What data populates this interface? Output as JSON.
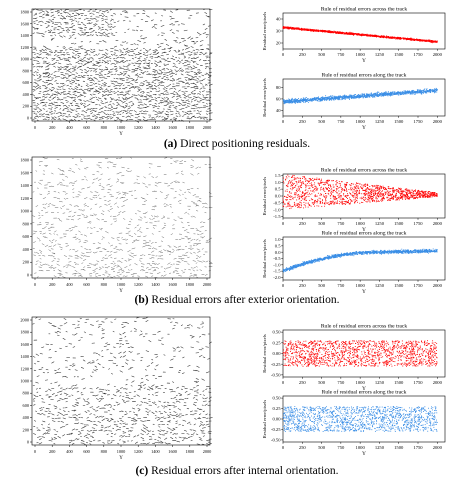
{
  "figure": {
    "panels": [
      {
        "id": "a",
        "caption_label": "(a)",
        "caption_text": " Direct positioning residuals.",
        "vector": {
          "y_label": "Y",
          "x_ticks": [
            "0",
            "200",
            "400",
            "600",
            "800",
            "1000",
            "1200",
            "1400",
            "1600",
            "1800",
            "2000"
          ],
          "y_ticks": [
            "0",
            "200",
            "400",
            "600",
            "800",
            "1000",
            "1200",
            "1400",
            "1600",
            "1800"
          ]
        },
        "charts": [
          {
            "title": "Rule of residual errors across the track",
            "xlabel": "Y",
            "ylabel": "Residual error/pixels",
            "color": "#ff0000",
            "x_ticks": [
              "0",
              "250",
              "500",
              "750",
              "1000",
              "1250",
              "1500",
              "1750",
              "2000"
            ],
            "y_ticks": [
              "20",
              "30",
              "40"
            ]
          },
          {
            "title": "Rule of residual errors along the track",
            "xlabel": "Y",
            "ylabel": "Residual error/pixels",
            "color": "#3a8ee6",
            "x_ticks": [
              "0",
              "250",
              "500",
              "750",
              "1000",
              "1250",
              "1500",
              "1750",
              "2000"
            ],
            "y_ticks": [
              "40",
              "60",
              "80"
            ]
          }
        ]
      },
      {
        "id": "b",
        "caption_label": "(b)",
        "caption_text": " Residual errors after exterior orientation.",
        "vector": {
          "y_label": "Y",
          "x_ticks": [
            "0",
            "200",
            "400",
            "600",
            "800",
            "1000",
            "1200",
            "1400",
            "1600",
            "1800",
            "2000"
          ],
          "y_ticks": [
            "0",
            "200",
            "400",
            "600",
            "800",
            "1000",
            "1200",
            "1400",
            "1600",
            "1800"
          ]
        },
        "charts": [
          {
            "title": "Rule of residual errors across the track",
            "xlabel": "Y",
            "ylabel": "Residual error/pixels",
            "color": "#ff0000",
            "x_ticks": [
              "0",
              "250",
              "500",
              "750",
              "1000",
              "1250",
              "1500",
              "1750",
              "2000"
            ],
            "y_ticks": [
              "-1.5",
              "-1.0",
              "-0.5",
              "0.0",
              "0.5",
              "1.0",
              "1.5"
            ]
          },
          {
            "title": "Rule of residual errors along the track",
            "xlabel": "Y",
            "ylabel": "Residual error/pixels",
            "color": "#3a8ee6",
            "x_ticks": [
              "0",
              "250",
              "500",
              "750",
              "1000",
              "1250",
              "1500",
              "1750",
              "2000"
            ],
            "y_ticks": [
              "-2.0",
              "-1.5",
              "-1.0",
              "-0.5",
              "0.0",
              "0.5",
              "1.0"
            ]
          }
        ]
      },
      {
        "id": "c",
        "caption_label": "(c)",
        "caption_text": " Residual errors after internal orientation.",
        "vector": {
          "y_label": "Y",
          "x_ticks": [
            "0",
            "200",
            "400",
            "600",
            "800",
            "1000",
            "1200",
            "1400",
            "1600",
            "1800",
            "2000"
          ],
          "y_ticks": [
            "0",
            "200",
            "400",
            "600",
            "800",
            "1000",
            "1200",
            "1400",
            "1600",
            "1800",
            "2000"
          ]
        },
        "charts": [
          {
            "title": "Rule of residual errors across the track",
            "xlabel": "Y",
            "ylabel": "Residual error/pixels",
            "color": "#ff0000",
            "x_ticks": [
              "0",
              "250",
              "500",
              "750",
              "1000",
              "1250",
              "1500",
              "1750",
              "2000"
            ],
            "y_ticks": [
              "-0.50",
              "-0.25",
              "0.00",
              "0.25",
              "0.50"
            ]
          },
          {
            "title": "Rule of residual errors along the track",
            "xlabel": "Y",
            "ylabel": "Residual error/pixels",
            "color": "#3a8ee6",
            "x_ticks": [
              "0",
              "250",
              "500",
              "750",
              "1000",
              "1250",
              "1500",
              "1750",
              "2000"
            ],
            "y_ticks": [
              "-0.50",
              "-0.25",
              "0.00",
              "0.25",
              "0.50"
            ]
          }
        ]
      }
    ]
  },
  "chart_data": [
    {
      "type": "scatter",
      "panel": "a",
      "title": "Rule of residual errors across the track",
      "xlabel": "Y",
      "ylabel": "Residual error/pixels",
      "xlim": [
        0,
        2100
      ],
      "ylim": [
        15,
        45
      ],
      "trend": "linear",
      "x": [
        0,
        2000
      ],
      "y": [
        33,
        21
      ],
      "spread": 1.5,
      "color": "#ff0000"
    },
    {
      "type": "scatter",
      "panel": "a",
      "title": "Rule of residual errors along the track",
      "xlabel": "Y",
      "ylabel": "Residual error/pixels",
      "xlim": [
        0,
        2100
      ],
      "ylim": [
        30,
        95
      ],
      "trend": "linear",
      "x": [
        0,
        2000
      ],
      "y": [
        55,
        75
      ],
      "spread": 7,
      "color": "#3a8ee6"
    },
    {
      "type": "scatter",
      "panel": "b",
      "title": "Rule of residual errors across the track",
      "xlabel": "Y",
      "ylabel": "Residual error/pixels",
      "xlim": [
        0,
        2100
      ],
      "ylim": [
        -1.6,
        1.6
      ],
      "trend": "funnel",
      "x": [
        0,
        2000
      ],
      "y": [
        0.3,
        0.1
      ],
      "spread_start": 1.3,
      "spread_end": 0.15,
      "color": "#ff0000"
    },
    {
      "type": "scatter",
      "panel": "b",
      "title": "Rule of residual errors along the track",
      "xlabel": "Y",
      "ylabel": "Residual error/pixels",
      "xlim": [
        0,
        2100
      ],
      "ylim": [
        -2.2,
        1.2
      ],
      "trend": "curve",
      "x": [
        0,
        1250,
        2000
      ],
      "y": [
        -1.5,
        0.0,
        0.1
      ],
      "spread": 0.25,
      "color": "#3a8ee6"
    },
    {
      "type": "scatter",
      "panel": "c",
      "title": "Rule of residual errors across the track",
      "xlabel": "Y",
      "ylabel": "Residual error/pixels",
      "xlim": [
        0,
        2100
      ],
      "ylim": [
        -0.55,
        0.55
      ],
      "trend": "flat",
      "x": [
        0,
        2000
      ],
      "y": [
        0.0,
        0.0
      ],
      "spread": 0.3,
      "color": "#ff0000"
    },
    {
      "type": "scatter",
      "panel": "c",
      "title": "Rule of residual errors along the track",
      "xlabel": "Y",
      "ylabel": "Residual error/pixels",
      "xlim": [
        0,
        2100
      ],
      "ylim": [
        -0.55,
        0.55
      ],
      "trend": "flat",
      "x": [
        0,
        2000
      ],
      "y": [
        0.0,
        0.0
      ],
      "spread": 0.3,
      "color": "#3a8ee6"
    }
  ]
}
